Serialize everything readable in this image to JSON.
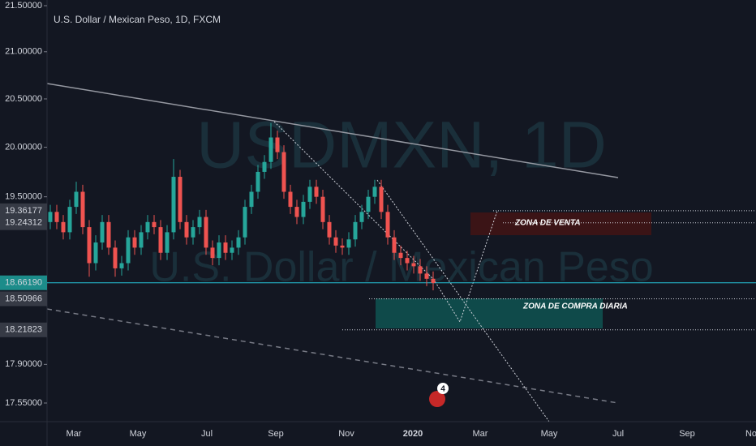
{
  "chart_data": {
    "type": "candlestick",
    "title": "U.S. Dollar / Mexican Peso, 1D, FXCM",
    "watermark_symbol": "USDMXN, 1D",
    "watermark_name": "U.S. Dollar / Mexican Peso",
    "up_color": "#26a69a",
    "down_color": "#ef5350",
    "log_scale": true,
    "ylim": [
      17.55,
      21.5
    ],
    "yticks": [
      {
        "value": 21.5,
        "label": "21.50000"
      },
      {
        "value": 21,
        "label": "21.00000"
      },
      {
        "value": 20.5,
        "label": "20.50000"
      },
      {
        "value": 20,
        "label": "20.00000"
      },
      {
        "value": 19.5,
        "label": "19.50000"
      },
      {
        "value": 17.9,
        "label": "17.90000"
      },
      {
        "value": 17.55,
        "label": "17.55000"
      }
    ],
    "marked_levels": [
      {
        "value": 19.36177,
        "label": "19.36177",
        "color": "#363a45"
      },
      {
        "value": 19.24312,
        "label": "19.24312",
        "color": "#363a45"
      },
      {
        "value": 18.6619,
        "label": "18.66190",
        "color": "#1c8c8a"
      },
      {
        "value": 18.50966,
        "label": "18.50966",
        "color": "#363a45"
      },
      {
        "value": 18.21823,
        "label": "18.21823",
        "color": "#363a45"
      }
    ],
    "x_labels": [
      "Mar",
      "May",
      "Jul",
      "Sep",
      "Nov",
      "2020",
      "Mar",
      "May",
      "Jul",
      "Sep",
      "No"
    ],
    "zones": [
      "ZONA DE VENTA",
      "ZONA DE COMPRA DIARIA"
    ],
    "events_badge": "4",
    "open": [
      19.25,
      19.35,
      19.25,
      19.15,
      19.4,
      19.55,
      19.2,
      18.85,
      19.05,
      19.25,
      19.0,
      18.8,
      18.85,
      19.1,
      19.0,
      19.15,
      19.25,
      19.2,
      18.95,
      19.15,
      19.7,
      19.25,
      19.1,
      19.2,
      19.3,
      19.0,
      18.9,
      19.05,
      18.95,
      19.0,
      19.1,
      19.4,
      19.55,
      19.75,
      19.85,
      20.1,
      19.95,
      19.55,
      19.4,
      19.3,
      19.45,
      19.6,
      19.5,
      19.25,
      19.1,
      19.02,
      19.0,
      19.08,
      19.25,
      19.35,
      19.5,
      19.6,
      19.35,
      19.1,
      18.95,
      18.9,
      18.85,
      18.82,
      18.75,
      18.7
    ],
    "high": [
      19.42,
      19.42,
      19.32,
      19.47,
      19.65,
      19.62,
      19.27,
      19.12,
      19.32,
      19.32,
      19.07,
      18.92,
      19.17,
      19.17,
      19.22,
      19.32,
      19.32,
      19.27,
      19.22,
      19.88,
      19.77,
      19.32,
      19.27,
      19.37,
      19.37,
      19.07,
      19.12,
      19.12,
      19.07,
      19.17,
      19.47,
      19.62,
      19.82,
      19.92,
      20.25,
      20.17,
      20.02,
      19.62,
      19.47,
      19.52,
      19.67,
      19.67,
      19.57,
      19.32,
      19.17,
      19.09,
      19.15,
      19.32,
      19.42,
      19.57,
      19.67,
      19.67,
      19.42,
      19.17,
      19.02,
      18.97,
      18.92,
      18.89,
      18.82,
      18.77
    ],
    "low": [
      19.18,
      19.18,
      19.08,
      19.08,
      19.33,
      19.13,
      18.72,
      18.78,
      18.98,
      18.93,
      18.72,
      18.73,
      18.78,
      18.93,
      18.93,
      19.08,
      19.13,
      18.88,
      18.88,
      19.08,
      19.18,
      19.03,
      19.03,
      19.13,
      18.93,
      18.83,
      18.83,
      18.88,
      18.88,
      18.93,
      19.03,
      19.33,
      19.48,
      19.68,
      19.78,
      19.88,
      19.48,
      19.33,
      19.23,
      19.23,
      19.38,
      19.43,
      19.18,
      19.03,
      18.95,
      18.93,
      18.93,
      19.01,
      19.18,
      19.28,
      19.43,
      19.28,
      19.03,
      18.88,
      18.83,
      18.78,
      18.75,
      18.68,
      18.63,
      18.59
    ],
    "close": [
      19.35,
      19.25,
      19.15,
      19.4,
      19.55,
      19.2,
      18.85,
      19.05,
      19.25,
      19.0,
      18.8,
      18.85,
      19.1,
      19.0,
      19.15,
      19.25,
      19.2,
      18.95,
      19.15,
      19.7,
      19.25,
      19.1,
      19.2,
      19.3,
      19.0,
      18.9,
      19.05,
      18.95,
      19.0,
      19.1,
      19.4,
      19.55,
      19.75,
      19.85,
      20.1,
      19.95,
      19.55,
      19.4,
      19.3,
      19.45,
      19.6,
      19.5,
      19.25,
      19.1,
      19.02,
      19.0,
      19.08,
      19.25,
      19.35,
      19.5,
      19.6,
      19.35,
      19.1,
      18.95,
      18.9,
      18.85,
      18.82,
      18.75,
      18.7,
      18.66
    ]
  }
}
